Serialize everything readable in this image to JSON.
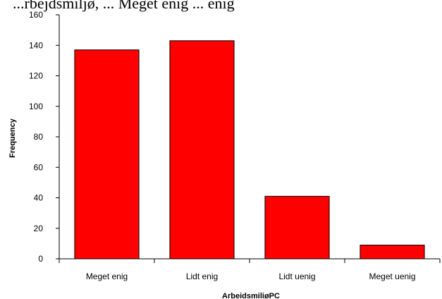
{
  "chart_data": {
    "type": "bar",
    "title": "...rbejdsmiljø, ... Meget enig ... enig",
    "categories": [
      "Meget enig",
      "Lidt enig",
      "Lidt uenig",
      "Meget uenig"
    ],
    "values": [
      137,
      143,
      41,
      9
    ],
    "xlabel": "ArbeidsmiliøPC",
    "ylabel": "Frequency",
    "ylim": [
      0,
      160
    ],
    "yticks": [
      0,
      20,
      40,
      60,
      80,
      100,
      120,
      140,
      160
    ],
    "grid": false,
    "legend": "none",
    "bar_color": "#ff0000",
    "bar_edge_color": "#000000"
  }
}
